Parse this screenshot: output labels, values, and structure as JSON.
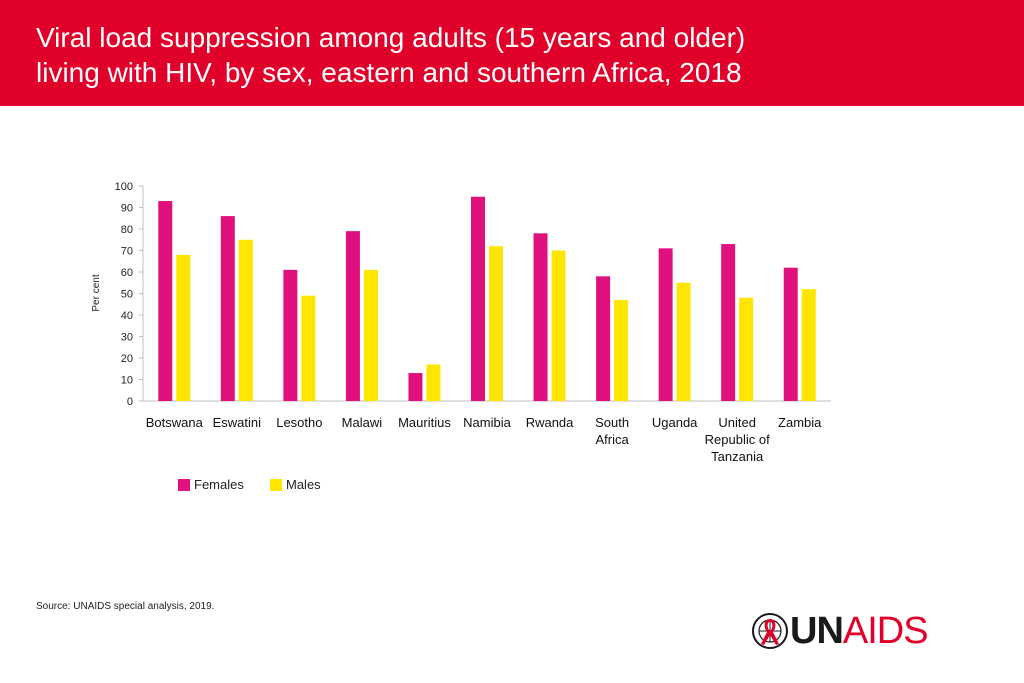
{
  "header": {
    "title_line1": "Viral load suppression among adults (15 years and older)",
    "title_line2": "living with HIV, by sex, eastern and southern Africa, 2018",
    "background": "#e1002a"
  },
  "chart_data": {
    "type": "bar",
    "title": "Viral load suppression among adults (15 years and older) living with HIV, by sex, eastern and southern Africa, 2018",
    "xlabel": "",
    "ylabel": "Per cent",
    "ylim": [
      0,
      100
    ],
    "yticks": [
      0,
      10,
      20,
      30,
      40,
      50,
      60,
      70,
      80,
      90,
      100
    ],
    "grid": false,
    "legend_position": "bottom-left",
    "categories": [
      [
        "Botswana"
      ],
      [
        "Eswatini"
      ],
      [
        "Lesotho"
      ],
      [
        "Malawi"
      ],
      [
        "Mauritius"
      ],
      [
        "Namibia"
      ],
      [
        "Rwanda"
      ],
      [
        "South",
        "Africa"
      ],
      [
        "Uganda"
      ],
      [
        "United",
        "Republic of",
        "Tanzania"
      ],
      [
        "Zambia"
      ]
    ],
    "series": [
      {
        "name": "Females",
        "color": "#e0117f",
        "values": [
          93,
          86,
          61,
          79,
          13,
          95,
          78,
          58,
          71,
          73,
          62
        ]
      },
      {
        "name": "Males",
        "color": "#ffe600",
        "values": [
          68,
          75,
          49,
          61,
          17,
          72,
          70,
          47,
          55,
          48,
          52
        ]
      }
    ]
  },
  "source": {
    "label": "Source:",
    "text": "UNAIDS special analysis, 2019."
  },
  "logo": {
    "part1": "UN",
    "part2": "AIDS",
    "accent": "#e1002a",
    "icon": "un-emblem-ribbon-icon"
  }
}
